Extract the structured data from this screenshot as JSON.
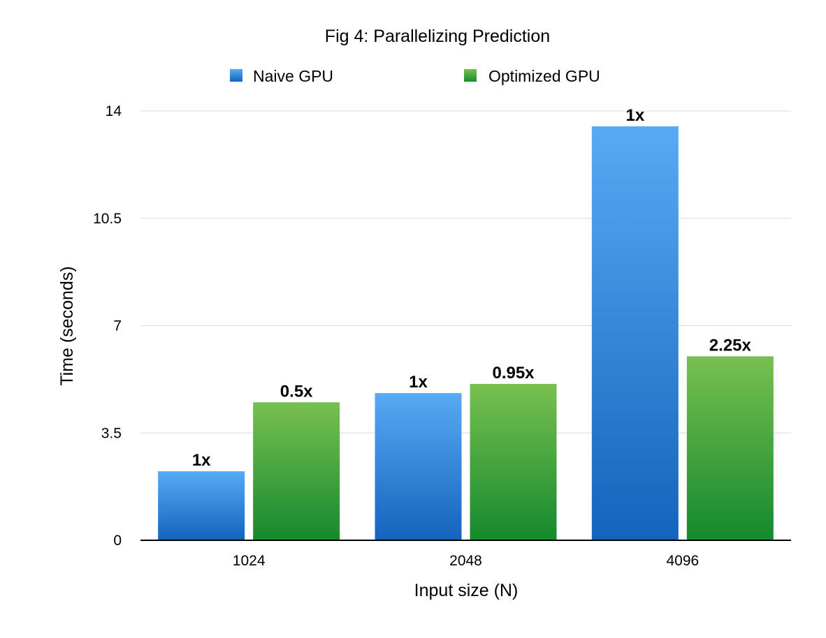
{
  "chart_data": {
    "type": "bar",
    "title": "Fig 4: Parallelizing Prediction",
    "xlabel": "Input size (N)",
    "ylabel": "Time (seconds)",
    "categories": [
      "1024",
      "2048",
      "4096"
    ],
    "series": [
      {
        "name": "Naive GPU",
        "values": [
          2.25,
          4.8,
          13.5
        ],
        "labels": [
          "1x",
          "1x",
          "1x"
        ],
        "color_light": "#58aaf3",
        "color_dark": "#1463bd"
      },
      {
        "name": "Optimized GPU",
        "values": [
          4.5,
          5.1,
          6.0
        ],
        "labels": [
          "0.5x",
          "0.95x",
          "2.25x"
        ],
        "color_light": "#78c050",
        "color_dark": "#14892e"
      }
    ],
    "yticks": [
      "0",
      "3.5",
      "7",
      "10.5",
      "14"
    ],
    "ylim": [
      0,
      14
    ],
    "grid": true,
    "legend_position": "top"
  }
}
